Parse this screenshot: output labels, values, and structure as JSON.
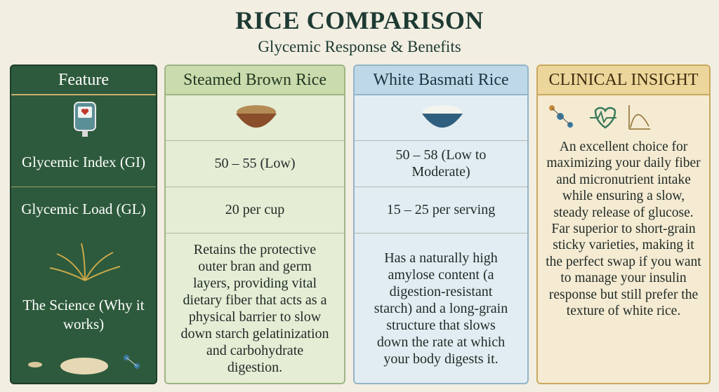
{
  "header": {
    "title": "RICE COMPARISON",
    "subtitle": "Glycemic Response & Benefits"
  },
  "table": {
    "columns": [
      "Feature",
      "Steamed Brown Rice",
      "White Basmati Rice",
      "CLINICAL INSIGHT"
    ],
    "rows": [
      [
        "Glycemic Index (GI)",
        "50 – 55 (Low)",
        "50 – 58 (Low to Moderate)"
      ],
      [
        "Glycemic Load (GL)",
        "20 per cup",
        "15 – 25 per serving"
      ],
      [
        "The Science (Why it works)",
        "Retains the protective outer bran and germ layers, providing vital dietary fiber that acts as a physical barrier to slow down starch gelatinization and carbohydrate digestion.",
        "Has a naturally high amylose content (a digestion-resistant starch) and a long-grain structure that slows down the rate at which your body digests it."
      ]
    ],
    "insight": [
      "An excellent choice for maximizing your daily fiber and micronutrient intake while ensuring a slow, steady release of glucose.",
      "Far superior to short-grain sticky varieties, making it the perfect swap if you want to manage your insulin response but still prefer the texture of white rice."
    ]
  }
}
